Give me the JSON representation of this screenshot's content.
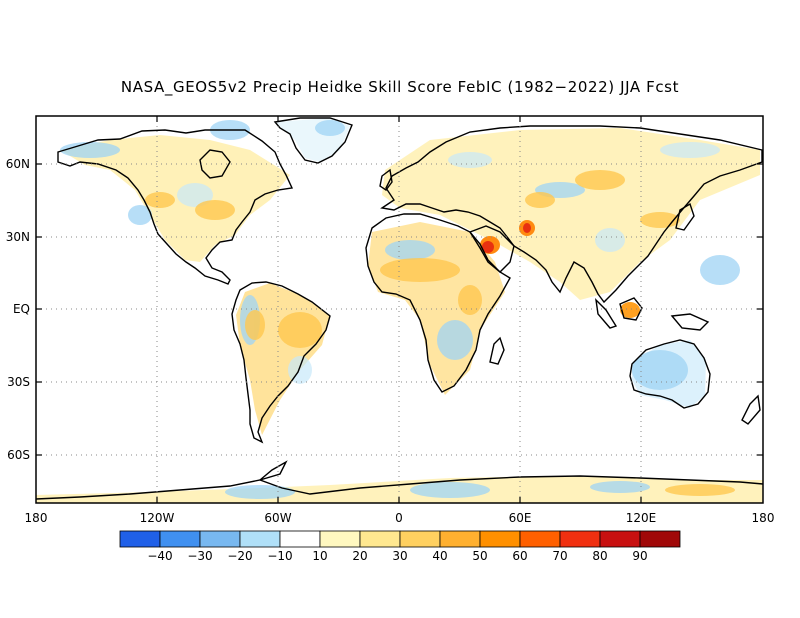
{
  "title": "NASA_GEOS5v2 Precip Heidke Skill Score FebIC (1982−2022) JJA Fcst",
  "axes": {
    "y_ticks": [
      "60N",
      "30N",
      "EQ",
      "30S",
      "60S"
    ],
    "x_ticks": [
      "180",
      "120W",
      "60W",
      "0",
      "60E",
      "120E",
      "180"
    ]
  },
  "colorbar": {
    "colors": [
      "#2060e8",
      "#4090f0",
      "#78b8f0",
      "#b0e0f8",
      "#ffffff",
      "#fff8c0",
      "#ffe890",
      "#ffd060",
      "#ffb030",
      "#ff9000",
      "#ff6000",
      "#f03010",
      "#c81010",
      "#a00808"
    ],
    "labels": [
      "−40",
      "−30",
      "−20",
      "−10",
      "10",
      "20",
      "30",
      "40",
      "50",
      "60",
      "70",
      "80",
      "90"
    ]
  },
  "grid": "dotted",
  "projection": "equirectangular"
}
